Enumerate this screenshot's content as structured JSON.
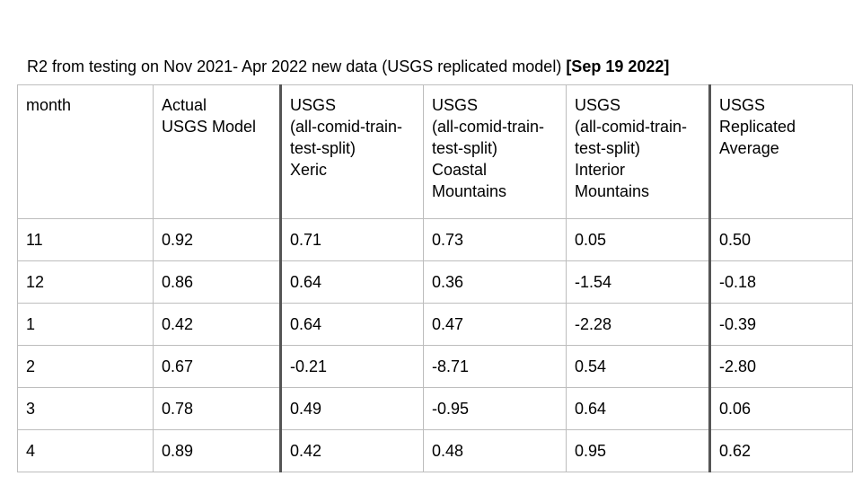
{
  "title": {
    "text": "R2 from testing on Nov 2021- Apr 2022 new data (USGS replicated model) ",
    "date": "[Sep 19 2022]"
  },
  "table": {
    "headers": [
      [
        "month"
      ],
      [
        "Actual",
        "USGS Model"
      ],
      [
        "USGS",
        "(all-comid-train-",
        "test-split)",
        "Xeric"
      ],
      [
        "USGS",
        "(all-comid-train-",
        "test-split)",
        "Coastal",
        "Mountains"
      ],
      [
        "USGS",
        "(all-comid-train-",
        "test-split)",
        "Interior",
        "Mountains"
      ],
      [
        "USGS",
        "Replicated",
        "Average"
      ]
    ],
    "rows": [
      [
        "11",
        "0.92",
        "0.71",
        "0.73",
        "0.05",
        "0.50"
      ],
      [
        "12",
        "0.86",
        "0.64",
        "0.36",
        "-1.54",
        "-0.18"
      ],
      [
        "1",
        "0.42",
        "0.64",
        "0.47",
        "-2.28",
        "-0.39"
      ],
      [
        "2",
        "0.67",
        "-0.21",
        "-8.71",
        "0.54",
        "-2.80"
      ],
      [
        "3",
        "0.78",
        "0.49",
        "-0.95",
        "0.64",
        "0.06"
      ],
      [
        "4",
        "0.89",
        "0.42",
        "0.48",
        "0.95",
        "0.62"
      ]
    ]
  }
}
